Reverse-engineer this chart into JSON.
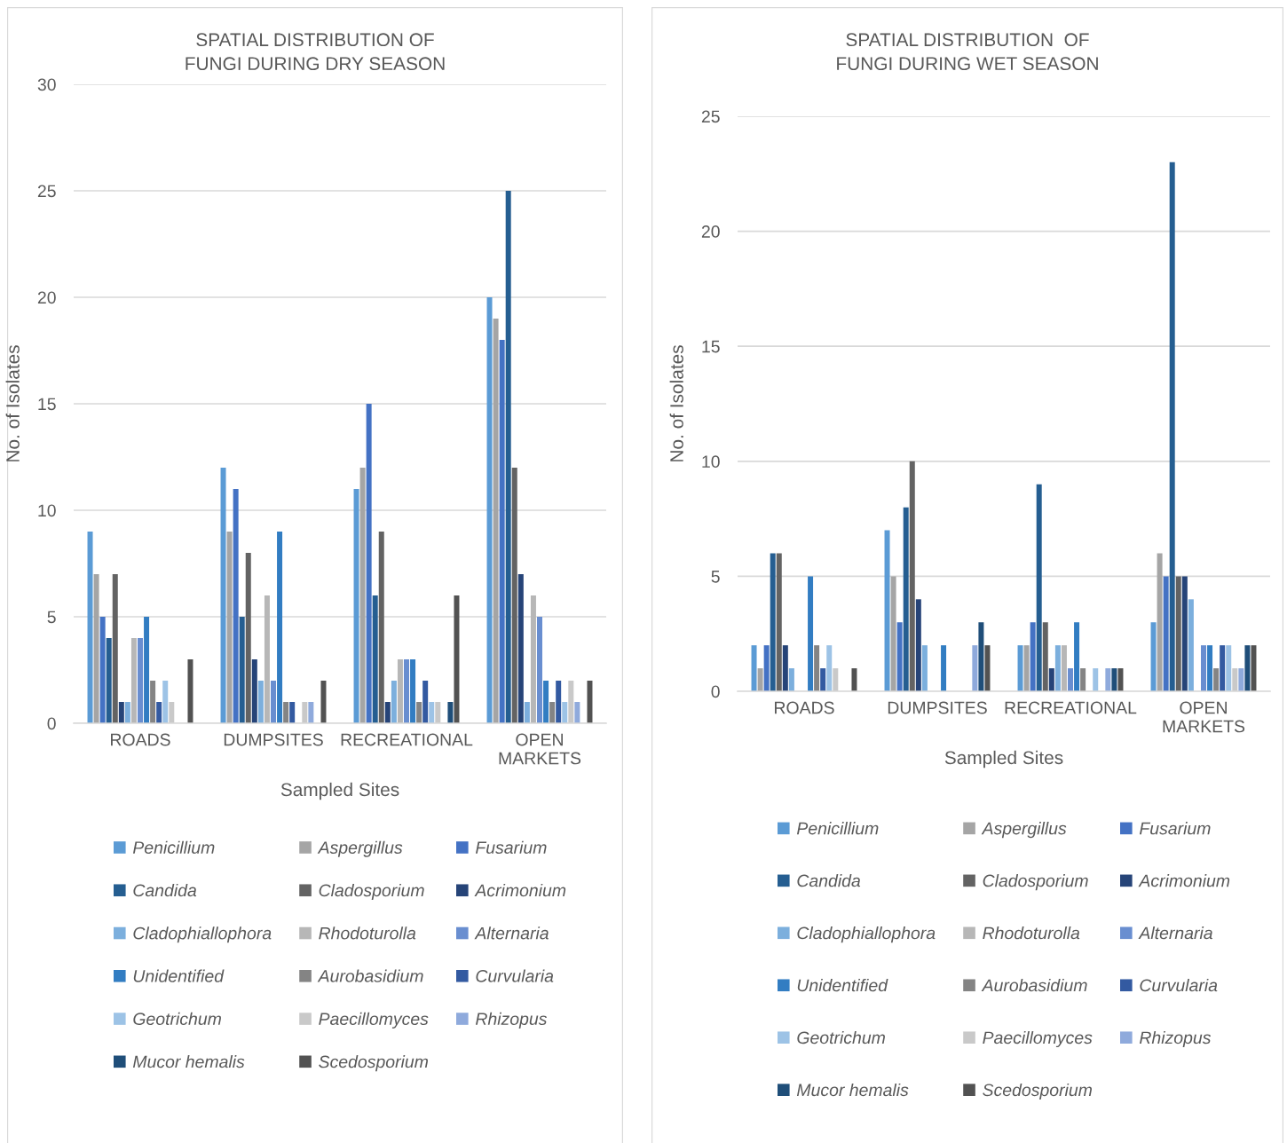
{
  "chart_data": [
    {
      "type": "bar",
      "title": "SPATIAL DISTRIBUTION OF FUNGI DURING DRY SEASON",
      "xlabel": "Sampled Sites",
      "ylabel": "No. of Isolates",
      "categories": [
        "ROADS",
        "DUMPSITES",
        "RECREATIONAL",
        "OPEN MARKETS"
      ],
      "ylim": [
        0,
        30
      ],
      "yticks": [
        0,
        5,
        10,
        15,
        20,
        25,
        30
      ],
      "grid": "y",
      "legend": "bottom",
      "series": [
        {
          "name": "Penicillium",
          "color": "#5b9bd5",
          "values": [
            9,
            12,
            11,
            20
          ]
        },
        {
          "name": "Aspergillus",
          "color": "#a5a5a5",
          "values": [
            7,
            9,
            12,
            19
          ]
        },
        {
          "name": "Fusarium",
          "color": "#4472c4",
          "values": [
            5,
            11,
            15,
            18
          ]
        },
        {
          "name": "Candida",
          "color": "#255e91",
          "values": [
            4,
            5,
            6,
            25
          ]
        },
        {
          "name": "Cladosporium",
          "color": "#636363",
          "values": [
            7,
            8,
            9,
            12
          ]
        },
        {
          "name": "Acrimonium",
          "color": "#264478",
          "values": [
            1,
            3,
            1,
            7
          ]
        },
        {
          "name": "Cladophiallophora",
          "color": "#7cafdd",
          "values": [
            1,
            2,
            2,
            1
          ]
        },
        {
          "name": "Rhodoturolla",
          "color": "#b7b7b7",
          "values": [
            4,
            6,
            3,
            6
          ]
        },
        {
          "name": "Alternaria",
          "color": "#698ed0",
          "values": [
            4,
            2,
            3,
            5
          ]
        },
        {
          "name": "Unidentified",
          "color": "#327dc2",
          "values": [
            5,
            9,
            3,
            2
          ]
        },
        {
          "name": "Aurobasidium",
          "color": "#848484",
          "values": [
            2,
            1,
            1,
            1
          ]
        },
        {
          "name": "Curvularia",
          "color": "#335aa1",
          "values": [
            1,
            1,
            2,
            2
          ]
        },
        {
          "name": "Geotrichum",
          "color": "#9dc3e6",
          "values": [
            2,
            0,
            1,
            1
          ]
        },
        {
          "name": "Paecillomyces",
          "color": "#c9c9c9",
          "values": [
            1,
            1,
            1,
            2
          ]
        },
        {
          "name": "Rhizopus",
          "color": "#8faadc",
          "values": [
            0,
            1,
            0,
            1
          ]
        },
        {
          "name": "Mucor hemalis",
          "color": "#1f4e79",
          "values": [
            0,
            0,
            1,
            0
          ]
        },
        {
          "name": "Scedosporium",
          "color": "#525252",
          "values": [
            3,
            2,
            6,
            2
          ]
        }
      ]
    },
    {
      "type": "bar",
      "title": "SPATIAL DISTRIBUTION  OF FUNGI DURING WET SEASON",
      "xlabel": "Sampled Sites",
      "ylabel": "No. of Isolates",
      "categories": [
        "ROADS",
        "DUMPSITES",
        "RECREATIONAL",
        "OPEN MARKETS"
      ],
      "ylim": [
        0,
        25
      ],
      "yticks": [
        0,
        5,
        10,
        15,
        20,
        25
      ],
      "grid": "y",
      "legend": "bottom",
      "series": [
        {
          "name": "Penicillium",
          "color": "#5b9bd5",
          "values": [
            2,
            7,
            2,
            3
          ]
        },
        {
          "name": "Aspergillus",
          "color": "#a5a5a5",
          "values": [
            1,
            5,
            2,
            6
          ]
        },
        {
          "name": "Fusarium",
          "color": "#4472c4",
          "values": [
            2,
            3,
            3,
            5
          ]
        },
        {
          "name": "Candida",
          "color": "#255e91",
          "values": [
            6,
            8,
            9,
            23
          ]
        },
        {
          "name": "Cladosporium",
          "color": "#636363",
          "values": [
            6,
            10,
            3,
            5
          ]
        },
        {
          "name": "Acrimonium",
          "color": "#264478",
          "values": [
            2,
            4,
            1,
            5
          ]
        },
        {
          "name": "Cladophiallophora",
          "color": "#7cafdd",
          "values": [
            1,
            2,
            2,
            4
          ]
        },
        {
          "name": "Rhodoturolla",
          "color": "#b7b7b7",
          "values": [
            0,
            0,
            2,
            0
          ]
        },
        {
          "name": "Alternaria",
          "color": "#698ed0",
          "values": [
            0,
            0,
            1,
            2
          ]
        },
        {
          "name": "Unidentified",
          "color": "#327dc2",
          "values": [
            5,
            2,
            3,
            2
          ]
        },
        {
          "name": "Aurobasidium",
          "color": "#848484",
          "values": [
            2,
            0,
            1,
            1
          ]
        },
        {
          "name": "Curvularia",
          "color": "#335aa1",
          "values": [
            1,
            0,
            0,
            2
          ]
        },
        {
          "name": "Geotrichum",
          "color": "#9dc3e6",
          "values": [
            2,
            0,
            1,
            2
          ]
        },
        {
          "name": "Paecillomyces",
          "color": "#c9c9c9",
          "values": [
            1,
            0,
            0,
            1
          ]
        },
        {
          "name": "Rhizopus",
          "color": "#8faadc",
          "values": [
            0,
            2,
            1,
            1
          ]
        },
        {
          "name": "Mucor hemalis",
          "color": "#1f4e79",
          "values": [
            0,
            3,
            1,
            2
          ]
        },
        {
          "name": "Scedosporium",
          "color": "#525252",
          "values": [
            1,
            2,
            1,
            2
          ]
        }
      ]
    }
  ]
}
